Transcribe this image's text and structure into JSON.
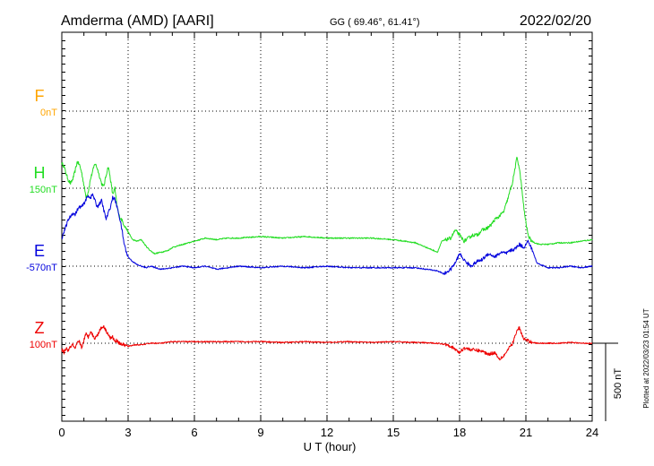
{
  "header": {
    "station": "Amderma (AMD)  [AARI]",
    "coords": "GG ( 69.46°,  61.41°)",
    "date": "2022/02/20"
  },
  "footer": {
    "plotted": "Plotted at 2022/03/23 01:54 UT"
  },
  "chart_data": {
    "type": "line",
    "xlabel": "U T (hour)",
    "xlim": [
      0,
      24
    ],
    "xticks": [
      "0",
      "3",
      "6",
      "9",
      "12",
      "15",
      "18",
      "21",
      "24"
    ],
    "scale_bar": "500 nT",
    "grid": true,
    "colors": {
      "F": "#ffa500",
      "H": "#22dd22",
      "E": "#0000dd",
      "Z": "#ee0000"
    },
    "series": [
      {
        "name": "F",
        "offset": "0nT",
        "x": [],
        "values": []
      },
      {
        "name": "H",
        "offset": "150nT",
        "x": [
          0.0,
          0.1,
          0.2,
          0.3,
          0.4,
          0.5,
          0.6,
          0.7,
          0.8,
          0.9,
          1.0,
          1.1,
          1.2,
          1.3,
          1.4,
          1.5,
          1.6,
          1.7,
          1.8,
          1.9,
          2.0,
          2.1,
          2.2,
          2.3,
          2.4,
          2.5,
          2.6,
          2.7,
          2.8,
          3.0,
          3.2,
          3.4,
          3.6,
          3.8,
          4.0,
          4.2,
          4.5,
          4.8,
          5.0,
          5.5,
          6.0,
          6.5,
          7.0,
          7.5,
          8.0,
          9.0,
          10.0,
          11.0,
          12.0,
          13.0,
          14.0,
          15.0,
          16.0,
          16.5,
          17.0,
          17.2,
          17.4,
          17.6,
          17.8,
          18.0,
          18.2,
          18.4,
          18.6,
          18.8,
          19.0,
          19.2,
          19.4,
          19.6,
          19.8,
          20.0,
          20.2,
          20.4,
          20.5,
          20.6,
          20.7,
          20.8,
          20.9,
          21.0,
          21.1,
          21.2,
          21.3,
          21.4,
          21.6,
          22.0,
          22.5,
          23.0,
          23.5,
          24.0
        ],
        "values": [
          160,
          140,
          90,
          50,
          30,
          60,
          110,
          170,
          150,
          100,
          20,
          -60,
          -20,
          60,
          110,
          160,
          130,
          80,
          30,
          10,
          80,
          140,
          60,
          -40,
          0,
          -120,
          -180,
          -200,
          -230,
          -280,
          -330,
          -340,
          -330,
          -370,
          -400,
          -420,
          -410,
          -400,
          -380,
          -360,
          -340,
          -320,
          -330,
          -320,
          -320,
          -310,
          -320,
          -310,
          -320,
          -320,
          -320,
          -330,
          -350,
          -380,
          -410,
          -340,
          -330,
          -320,
          -270,
          -300,
          -340,
          -320,
          -300,
          -300,
          -270,
          -260,
          -240,
          -200,
          -180,
          -150,
          -60,
          40,
          120,
          200,
          130,
          20,
          -120,
          -220,
          -300,
          -330,
          -340,
          -350,
          -360,
          -360,
          -350,
          -350,
          -340,
          -330
        ]
      },
      {
        "name": "E",
        "offset": "-570nT",
        "x": [
          0.0,
          0.1,
          0.2,
          0.3,
          0.4,
          0.5,
          0.6,
          0.7,
          0.8,
          0.9,
          1.0,
          1.1,
          1.2,
          1.3,
          1.4,
          1.5,
          1.6,
          1.7,
          1.8,
          1.9,
          2.0,
          2.1,
          2.2,
          2.3,
          2.4,
          2.5,
          2.6,
          2.7,
          2.8,
          2.9,
          3.0,
          3.2,
          3.4,
          3.6,
          3.8,
          4.0,
          4.5,
          5.0,
          5.5,
          6.0,
          6.5,
          7.0,
          8.0,
          9.0,
          10.0,
          11.0,
          12.0,
          13.0,
          14.0,
          15.0,
          16.0,
          16.5,
          17.0,
          17.3,
          17.6,
          17.8,
          18.0,
          18.2,
          18.5,
          18.8,
          19.0,
          19.3,
          19.6,
          19.9,
          20.1,
          20.3,
          20.5,
          20.7,
          20.9,
          21.1,
          21.3,
          21.5,
          22.0,
          22.5,
          23.0,
          23.5,
          24.0
        ],
        "values": [
          180,
          220,
          260,
          300,
          320,
          340,
          330,
          360,
          380,
          380,
          400,
          430,
          450,
          440,
          460,
          420,
          380,
          400,
          420,
          360,
          300,
          340,
          380,
          440,
          430,
          380,
          320,
          250,
          160,
          100,
          60,
          30,
          10,
          0,
          -10,
          0,
          -20,
          -10,
          0,
          -10,
          0,
          -20,
          0,
          -10,
          0,
          -10,
          0,
          -10,
          -10,
          -10,
          -10,
          -20,
          -30,
          -50,
          -20,
          20,
          80,
          40,
          0,
          30,
          40,
          80,
          60,
          90,
          80,
          100,
          110,
          140,
          120,
          160,
          100,
          20,
          -10,
          -10,
          0,
          -10,
          0
        ]
      },
      {
        "name": "Z",
        "offset": "100nT",
        "x": [
          0.0,
          0.1,
          0.2,
          0.3,
          0.4,
          0.5,
          0.6,
          0.7,
          0.8,
          0.9,
          1.0,
          1.1,
          1.2,
          1.3,
          1.4,
          1.5,
          1.6,
          1.7,
          1.8,
          1.9,
          2.0,
          2.1,
          2.2,
          2.3,
          2.4,
          2.5,
          2.6,
          2.8,
          3.0,
          3.3,
          3.6,
          4.0,
          4.5,
          5.0,
          6.0,
          7.0,
          8.0,
          9.0,
          10.0,
          11.0,
          12.0,
          13.0,
          14.0,
          15.0,
          16.0,
          17.0,
          17.5,
          17.8,
          18.0,
          18.2,
          18.5,
          19.0,
          19.3,
          19.6,
          19.8,
          20.0,
          20.2,
          20.4,
          20.5,
          20.6,
          20.7,
          20.8,
          20.9,
          21.0,
          21.2,
          21.5,
          22.0,
          22.5,
          23.0,
          23.5,
          24.0
        ],
        "values": [
          -40,
          -60,
          -30,
          -50,
          -20,
          -10,
          -40,
          0,
          10,
          -30,
          20,
          60,
          40,
          80,
          50,
          30,
          50,
          80,
          100,
          110,
          80,
          60,
          30,
          40,
          10,
          20,
          0,
          -10,
          -20,
          -10,
          -10,
          0,
          0,
          10,
          10,
          10,
          10,
          10,
          5,
          10,
          5,
          10,
          5,
          10,
          5,
          0,
          -10,
          -40,
          -60,
          -30,
          -40,
          -50,
          -70,
          -60,
          -100,
          -80,
          -40,
          0,
          40,
          80,
          100,
          60,
          30,
          20,
          10,
          0,
          0,
          0,
          5,
          0,
          0
        ]
      }
    ]
  }
}
